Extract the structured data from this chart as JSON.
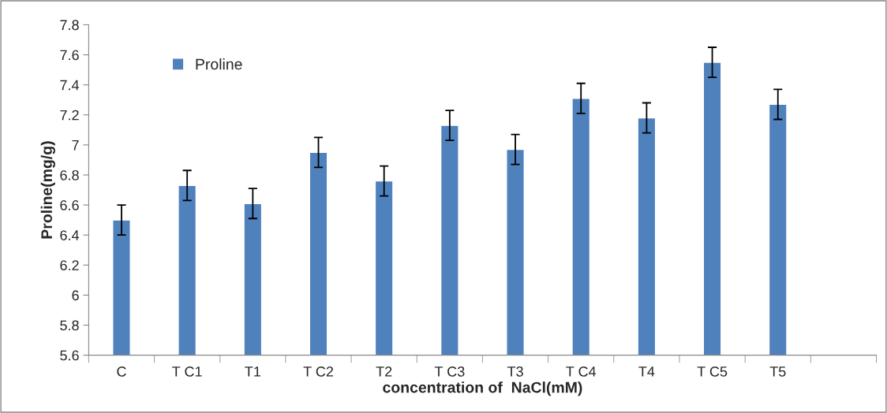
{
  "chart_data": {
    "type": "bar",
    "xlabel": "concentration of  NaCl(mM)",
    "ylabel": "Proline(mg/g)",
    "categories": [
      "C",
      "T C1",
      "T1",
      "T C2",
      "T2",
      "T C3",
      "T3",
      "T C4",
      "T4",
      "T C5",
      "T5",
      null
    ],
    "series": [
      {
        "name": "Proline",
        "color": "#4f81bd",
        "values": [
          6.5,
          6.73,
          6.61,
          6.95,
          6.76,
          7.13,
          6.97,
          7.31,
          7.18,
          7.55,
          7.27,
          null
        ],
        "errors": [
          0.1,
          0.1,
          0.1,
          0.1,
          0.1,
          0.1,
          0.1,
          0.1,
          0.1,
          0.1,
          0.1,
          null
        ]
      }
    ],
    "ylim": [
      5.6,
      7.8
    ],
    "yticks": [
      5.6,
      5.8,
      6,
      6.2,
      6.4,
      6.6,
      6.8,
      7,
      7.2,
      7.4,
      7.6,
      7.8
    ],
    "grid": false,
    "legend": "top left"
  }
}
